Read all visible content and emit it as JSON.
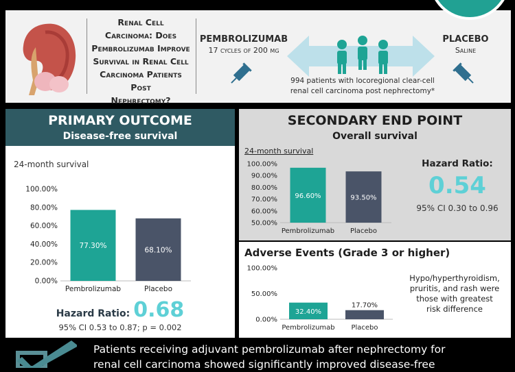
{
  "header": {
    "question": "Renal cell carcinoma: Does pembrolizumab improve survival in renal cell carcinoma patients post nephrectomy?",
    "question_line1": "Renal Cell",
    "question_line2": "Carcinoma: Does",
    "question_line3": "Pembrolizumab Improve",
    "question_line4": "Survival in Renal Cell",
    "question_line5": "Carcinoma Patients Post",
    "question_line6": "Nephrectomy?",
    "arm1_title": "PEMBROLIZUMAB",
    "arm1_dose": "17 cycles of 200 mg",
    "arm2_title": "PLACEBO",
    "arm2_dose": "Saline",
    "population_line1": "994 patients with locoregional clear-cell",
    "population_line2": "renal cell carcinoma post nephrectomy*"
  },
  "primary": {
    "title": "PRIMARY OUTCOME",
    "subtitle": "Disease-free survival",
    "hr_label": "Hazard Ratio:",
    "hr_value": "0.68",
    "ci": "95% CI 0.53 to 0.87; p = 0.002"
  },
  "secondary": {
    "title": "SECONDARY END POINT",
    "subtitle": "Overall survival",
    "hr_label": "Hazard Ratio:",
    "hr_value": "0.54",
    "ci": "95% CI 0.30 to 0.96"
  },
  "adverse": {
    "title": "Adverse Events (Grade 3 or higher)",
    "note_line1": "Hypo/hyperthyroidism,",
    "note_line2": "pruritis, and rash were",
    "note_line3": "those with greatest",
    "note_line4": "risk difference"
  },
  "conclusion": {
    "line1": "Patients receiving adjuvant pembrolizumab after nephrectomy for",
    "line2": "renal cell carcinoma showed significantly improved disease-free"
  },
  "colors": {
    "teal": "#1ea495",
    "slate": "#4a5468",
    "dark_panel": "#2f5a63",
    "accent": "#5ed0d6"
  },
  "chart_data": [
    {
      "type": "bar",
      "title": "24-month survival",
      "categories": [
        "Pembrolizumab",
        "Placebo"
      ],
      "values": [
        77.3,
        68.1
      ],
      "labels": [
        "77.30%",
        "68.10%"
      ],
      "ylim": [
        0,
        100
      ],
      "yticks": [
        "0.00%",
        "20.00%",
        "40.00%",
        "60.00%",
        "80.00%",
        "100.00%"
      ]
    },
    {
      "type": "bar",
      "title": "24-month survival",
      "categories": [
        "Pembrolizumab",
        "Placebo"
      ],
      "values": [
        96.6,
        93.5
      ],
      "labels": [
        "96.60%",
        "93.50%"
      ],
      "ylim": [
        50,
        100
      ],
      "yticks": [
        "50.00%",
        "60.00%",
        "70.00%",
        "80.00%",
        "90.00%",
        "100.00%"
      ]
    },
    {
      "type": "bar",
      "title": "",
      "categories": [
        "Pembrolizumab",
        "Placebo"
      ],
      "values": [
        32.4,
        17.7
      ],
      "labels": [
        "32.40%",
        "17.70%"
      ],
      "ylim": [
        0,
        100
      ],
      "yticks": [
        "0.00%",
        "50.00%",
        "100.00%"
      ]
    }
  ]
}
